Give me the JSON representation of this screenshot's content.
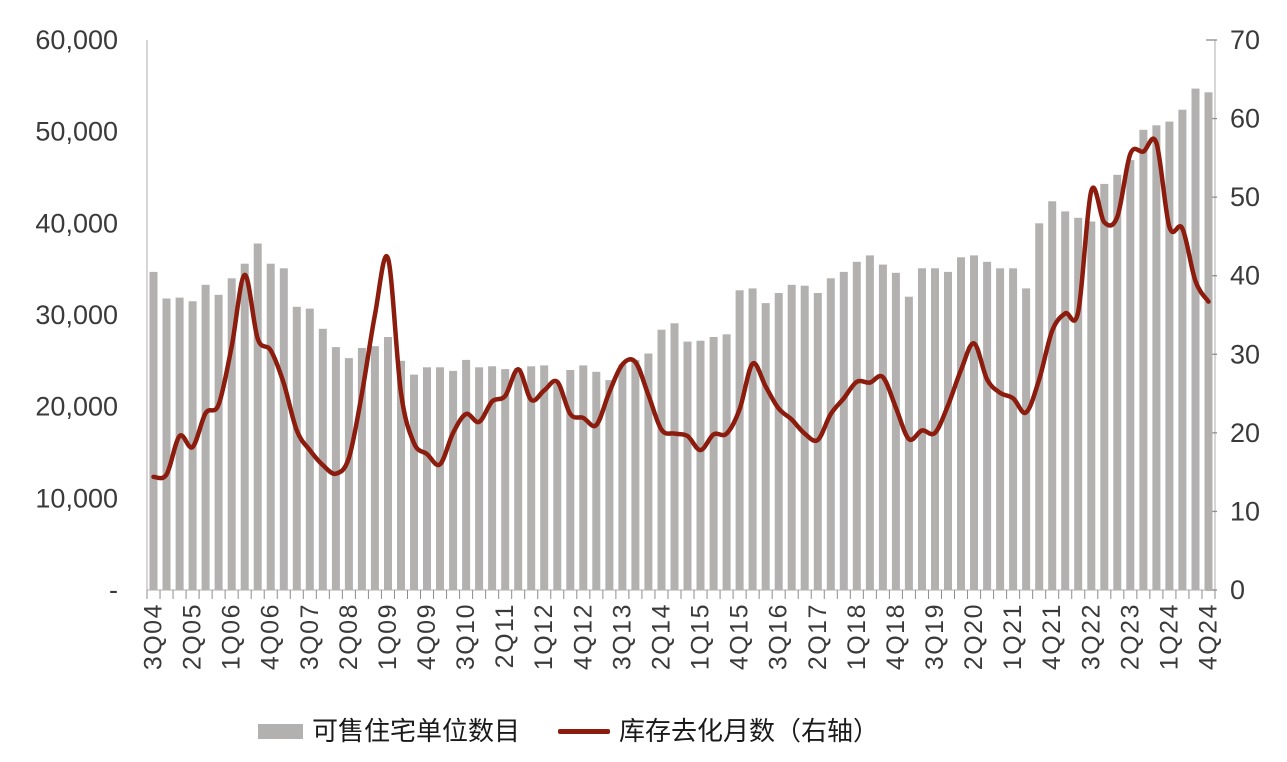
{
  "chart_data": {
    "type": "bar",
    "subtype": "combo-bar-line-dual-axis",
    "title": "",
    "grid": false,
    "legend_position": "bottom",
    "categories": [
      "3Q04",
      "4Q04",
      "1Q05",
      "2Q05",
      "3Q05",
      "4Q05",
      "1Q06",
      "2Q06",
      "3Q06",
      "4Q06",
      "1Q07",
      "2Q07",
      "3Q07",
      "4Q07",
      "1Q08",
      "2Q08",
      "3Q08",
      "4Q08",
      "1Q09",
      "2Q09",
      "3Q09",
      "4Q09",
      "1Q10",
      "2Q10",
      "3Q10",
      "4Q10",
      "1Q11",
      "2Q11",
      "3Q11",
      "4Q11",
      "1Q12",
      "2Q12",
      "3Q12",
      "4Q12",
      "1Q13",
      "2Q13",
      "3Q13",
      "4Q13",
      "1Q14",
      "2Q14",
      "3Q14",
      "4Q14",
      "1Q15",
      "2Q15",
      "3Q15",
      "4Q15",
      "1Q16",
      "2Q16",
      "3Q16",
      "4Q16",
      "1Q17",
      "2Q17",
      "3Q17",
      "4Q17",
      "1Q18",
      "2Q18",
      "3Q18",
      "4Q18",
      "1Q19",
      "2Q19",
      "3Q19",
      "4Q19",
      "1Q20",
      "2Q20",
      "3Q20",
      "4Q20",
      "1Q21",
      "2Q21",
      "3Q21",
      "4Q21",
      "1Q22",
      "2Q22",
      "3Q22",
      "4Q22",
      "1Q23",
      "2Q23",
      "3Q23",
      "4Q23",
      "1Q24",
      "2Q24",
      "3Q24",
      "4Q24"
    ],
    "x_label_interval": 3,
    "series": [
      {
        "name": "可售住宅单位数目",
        "type": "bar",
        "axis": "left",
        "color": "#b2b1b0",
        "values": [
          34700,
          31800,
          31900,
          31500,
          33300,
          32200,
          34000,
          35600,
          37800,
          35600,
          35100,
          30900,
          30700,
          28500,
          26500,
          25300,
          26400,
          26600,
          27600,
          25000,
          23500,
          24300,
          24300,
          23900,
          25100,
          24300,
          24400,
          24100,
          24200,
          24400,
          24500,
          22500,
          24000,
          24500,
          23800,
          22900,
          24600,
          25100,
          25800,
          28400,
          29100,
          27100,
          27200,
          27600,
          27900,
          32700,
          32900,
          31300,
          32400,
          33300,
          33200,
          32400,
          34000,
          34700,
          35800,
          36500,
          35500,
          34600,
          32000,
          35100,
          35100,
          34700,
          36300,
          36500,
          35800,
          35100,
          35100,
          32900,
          40000,
          42400,
          41300,
          40600,
          40200,
          44300,
          45300,
          46900,
          50200,
          50700,
          51100,
          52400,
          54700,
          54300
        ]
      },
      {
        "name": "库存去化月数（右轴）",
        "type": "line",
        "axis": "right",
        "color": "#8c1c0d",
        "values": [
          14.4,
          14.7,
          19.6,
          18.2,
          22.5,
          23.6,
          31.0,
          40.1,
          32.0,
          30.5,
          26.3,
          20.3,
          17.8,
          15.9,
          14.8,
          16.8,
          25.0,
          35.0,
          42.2,
          25.1,
          18.7,
          17.3,
          16.0,
          20.0,
          22.4,
          21.4,
          24.0,
          24.7,
          28.1,
          24.2,
          25.4,
          26.5,
          22.4,
          21.9,
          21.0,
          25.2,
          28.7,
          29.0,
          24.8,
          20.4,
          19.9,
          19.6,
          17.8,
          19.8,
          19.9,
          23.0,
          28.8,
          25.9,
          23.1,
          21.7,
          19.9,
          19.1,
          22.4,
          24.4,
          26.5,
          26.4,
          27.1,
          23.2,
          19.2,
          20.3,
          20.0,
          23.5,
          28.0,
          31.4,
          26.8,
          25.1,
          24.4,
          22.6,
          26.8,
          33.0,
          35.2,
          35.4,
          50.8,
          46.8,
          47.5,
          55.5,
          55.8,
          56.9,
          46.2,
          46.0,
          39.3,
          36.7
        ]
      }
    ],
    "left_axis": {
      "min": 0,
      "max": 60000,
      "step": 10000,
      "tick_labels": [
        "-",
        "10,000",
        "20,000",
        "30,000",
        "40,000",
        "50,000",
        "60,000"
      ]
    },
    "right_axis": {
      "min": 0,
      "max": 70,
      "step": 10,
      "tick_labels": [
        "0",
        "10",
        "20",
        "30",
        "40",
        "50",
        "60",
        "70"
      ]
    }
  },
  "legend": {
    "bar_label": "可售住宅单位数目",
    "line_label": "库存去化月数（右轴）"
  },
  "style": {
    "bar_color": "#b2b1b0",
    "line_color": "#8c1c0d",
    "axis_line_color": "#bfbfbf",
    "tick_color": "#8c8c8c",
    "label_color": "#3a3a3a"
  }
}
